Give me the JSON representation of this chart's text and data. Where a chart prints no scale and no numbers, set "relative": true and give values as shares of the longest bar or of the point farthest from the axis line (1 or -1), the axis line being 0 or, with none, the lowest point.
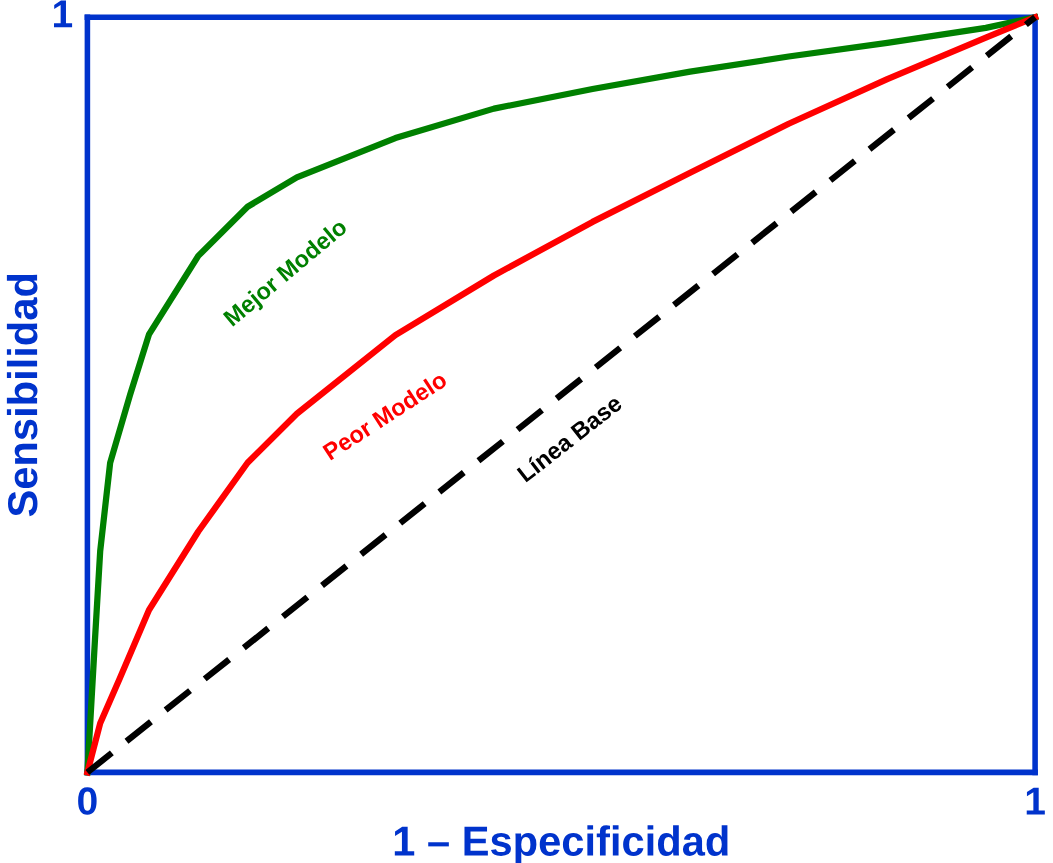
{
  "chart_data": {
    "type": "line",
    "xlabel": "1 – Especificidad",
    "ylabel": "Sensibilidad",
    "xlim": [
      0,
      1
    ],
    "xticks": [
      0,
      1
    ],
    "relative": true,
    "annotations": [
      "1"
    ],
    "legend": false,
    "marker": "none",
    "series": [
      {
        "name": "Mejor Modelo",
        "color": "#008000",
        "line_style": "solid",
        "x": [
          0,
          0.008,
          0.0135,
          0.024,
          0.045,
          0.065,
          0.117,
          0.169,
          0.221,
          0.325,
          0.429,
          0.533,
          0.636,
          0.74,
          0.844,
          0.948,
          1
        ],
        "values": [
          0,
          0.176,
          0.293,
          0.41,
          0.5,
          0.58,
          0.684,
          0.749,
          0.788,
          0.84,
          0.879,
          0.905,
          0.928,
          0.948,
          0.966,
          0.986,
          1
        ]
      },
      {
        "name": "Peor Modelo",
        "color": "#ff0000",
        "line_style": "solid",
        "x": [
          0,
          0.0135,
          0.034,
          0.065,
          0.117,
          0.169,
          0.221,
          0.325,
          0.429,
          0.533,
          0.636,
          0.74,
          0.844,
          0.948,
          1
        ],
        "values": [
          0,
          0.065,
          0.124,
          0.215,
          0.319,
          0.41,
          0.475,
          0.579,
          0.658,
          0.729,
          0.794,
          0.859,
          0.918,
          0.973,
          1
        ]
      },
      {
        "name": "Línea Base",
        "color": "#000000",
        "line_style": "dashed",
        "x": [
          0,
          1
        ],
        "values": [
          0,
          1
        ]
      }
    ]
  }
}
